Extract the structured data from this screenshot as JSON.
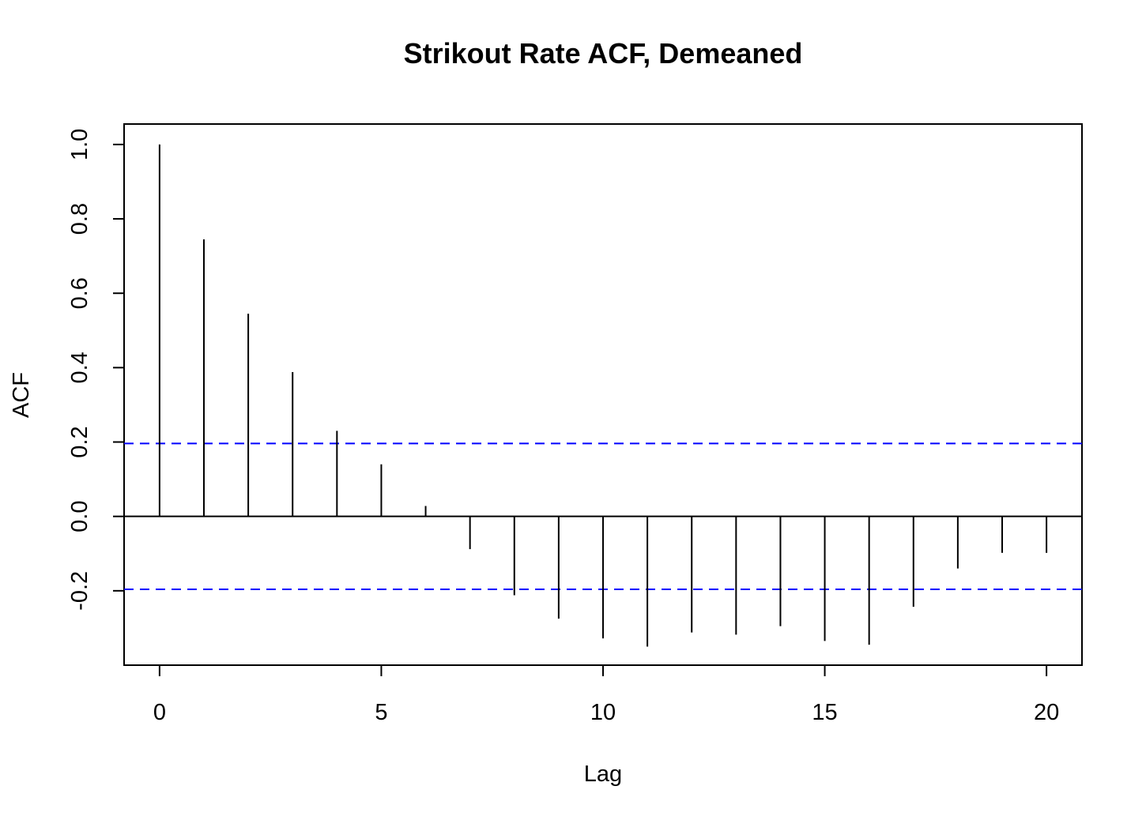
{
  "chart_data": {
    "type": "bar",
    "title": "Strikout Rate ACF, Demeaned",
    "xlabel": "Lag",
    "ylabel": "ACF",
    "xlim": [
      -0.8,
      20.8
    ],
    "ylim": [
      -0.4,
      1.055
    ],
    "x_ticks": [
      0,
      5,
      10,
      15,
      20
    ],
    "y_ticks": [
      -0.2,
      0.0,
      0.2,
      0.4,
      0.6,
      0.8,
      1.0
    ],
    "x_tick_labels": [
      "0",
      "5",
      "10",
      "15",
      "20"
    ],
    "y_tick_labels": [
      "-0.2",
      "0.0",
      "0.2",
      "0.4",
      "0.6",
      "0.8",
      "1.0"
    ],
    "lags": [
      0,
      1,
      2,
      3,
      4,
      5,
      6,
      7,
      8,
      9,
      10,
      11,
      12,
      13,
      14,
      15,
      16,
      17,
      18,
      19,
      20
    ],
    "values": [
      1.0,
      0.745,
      0.545,
      0.388,
      0.23,
      0.14,
      0.028,
      -0.088,
      -0.212,
      -0.275,
      -0.328,
      -0.35,
      -0.312,
      -0.318,
      -0.295,
      -0.335,
      -0.345,
      -0.243,
      -0.14,
      -0.098,
      -0.098
    ],
    "confidence_bound": 0.196,
    "grid": false,
    "colors": {
      "stems": "#000000",
      "confidence": "#0000ff",
      "zero_line": "#000000",
      "frame": "#000000"
    }
  }
}
